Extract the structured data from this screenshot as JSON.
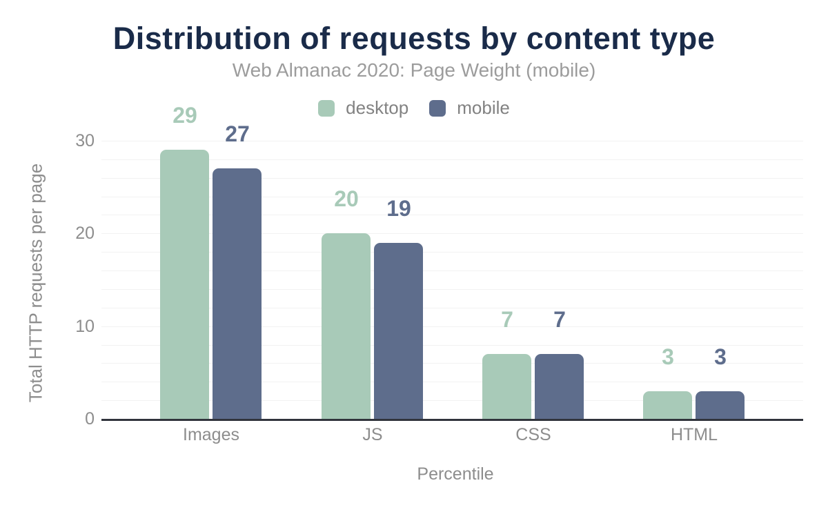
{
  "header": {
    "title": "Distribution of requests by content type",
    "subtitle": "Web Almanac 2020: Page Weight (mobile)"
  },
  "legend": {
    "items": [
      {
        "label": "desktop",
        "color": "#a8cab8"
      },
      {
        "label": "mobile",
        "color": "#5e6d8c"
      }
    ]
  },
  "chart_data": {
    "type": "bar",
    "title": "Distribution of requests by content type",
    "subtitle": "Web Almanac 2020: Page Weight (mobile)",
    "categories": [
      "Images",
      "JS",
      "CSS",
      "HTML"
    ],
    "series": [
      {
        "name": "desktop",
        "color": "#a8cab8",
        "values": [
          29,
          20,
          7,
          3
        ]
      },
      {
        "name": "mobile",
        "color": "#5e6d8c",
        "values": [
          27,
          19,
          7,
          3
        ]
      }
    ],
    "xlabel": "Percentile",
    "ylabel": "Total HTTP requests per page",
    "ylim": [
      0,
      30
    ],
    "yticks": [
      0,
      10,
      20,
      30
    ],
    "gridline_step": 2,
    "grid": "horizontal",
    "legend_position": "top",
    "data_labels": true
  },
  "colors": {
    "title": "#1a2b49",
    "subtitle": "#9c9c9c",
    "axis_labels": "#8d8d8d",
    "legend_text": "#828282",
    "axis_line": "#31343c",
    "gridline": "#f2f2f2",
    "background": "#ffffff"
  }
}
